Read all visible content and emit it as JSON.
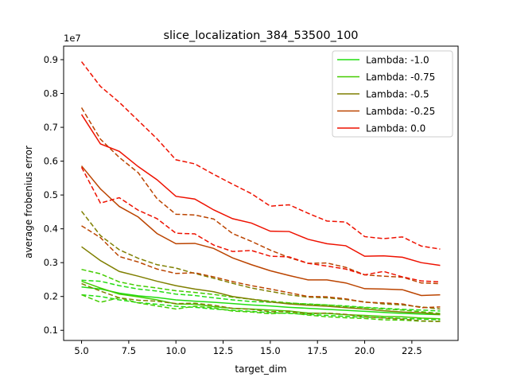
{
  "chart_data": {
    "type": "line",
    "title": "slice_localization_384_53500_100",
    "xlabel": "target_dim",
    "ylabel": "average frobenius error",
    "y_offset_label": "1e7",
    "xlim": [
      4.05,
      24.95
    ],
    "ylim": [
      0.07,
      0.94
    ],
    "x_ticks": [
      5.0,
      7.5,
      10.0,
      12.5,
      15.0,
      17.5,
      20.0,
      22.5
    ],
    "x_tick_labels": [
      "5.0",
      "7.5",
      "10.0",
      "12.5",
      "15.0",
      "17.5",
      "20.0",
      "22.5"
    ],
    "y_ticks": [
      0.1,
      0.2,
      0.3,
      0.4,
      0.5,
      0.6,
      0.7,
      0.8,
      0.9
    ],
    "y_tick_labels": [
      "0.1",
      "0.2",
      "0.3",
      "0.4",
      "0.5",
      "0.6",
      "0.7",
      "0.8",
      "0.9"
    ],
    "legend_position": "top-right",
    "grid": false,
    "x": [
      5,
      6,
      7,
      8,
      9,
      10,
      11,
      12,
      13,
      14,
      15,
      16,
      17,
      18,
      19,
      20,
      21,
      22,
      23,
      24
    ],
    "series": [
      {
        "name": "Lambda: -1.0",
        "color": "#22dd11",
        "solid": [
          0.228,
          0.222,
          0.21,
          0.202,
          0.197,
          0.19,
          0.186,
          0.183,
          0.179,
          0.175,
          0.172,
          0.168,
          0.165,
          0.162,
          0.159,
          0.156,
          0.153,
          0.15,
          0.148,
          0.146
        ],
        "dashed_a": [
          0.248,
          0.245,
          0.232,
          0.222,
          0.216,
          0.207,
          0.203,
          0.196,
          0.19,
          0.185,
          0.183,
          0.18,
          0.178,
          0.175,
          0.172,
          0.168,
          0.165,
          0.162,
          0.16,
          0.157
        ],
        "dashed_b": [
          0.205,
          0.2,
          0.19,
          0.182,
          0.177,
          0.171,
          0.168,
          0.163,
          0.159,
          0.156,
          0.152,
          0.15,
          0.147,
          0.144,
          0.141,
          0.139,
          0.137,
          0.135,
          0.133,
          0.131
        ]
      },
      {
        "name": "Lambda: -0.75",
        "color": "#44cc00",
        "solid": [
          0.245,
          0.225,
          0.207,
          0.199,
          0.19,
          0.178,
          0.177,
          0.17,
          0.165,
          0.163,
          0.16,
          0.157,
          0.151,
          0.15,
          0.146,
          0.144,
          0.141,
          0.14,
          0.136,
          0.134
        ],
        "dashed_a": [
          0.28,
          0.267,
          0.243,
          0.232,
          0.225,
          0.217,
          0.212,
          0.206,
          0.198,
          0.192,
          0.186,
          0.181,
          0.177,
          0.175,
          0.17,
          0.167,
          0.163,
          0.16,
          0.155,
          0.15
        ],
        "dashed_b": [
          0.205,
          0.183,
          0.196,
          0.181,
          0.172,
          0.163,
          0.171,
          0.166,
          0.157,
          0.154,
          0.149,
          0.152,
          0.145,
          0.14,
          0.137,
          0.135,
          0.131,
          0.13,
          0.127,
          0.126
        ]
      },
      {
        "name": "Lambda: -0.5",
        "color": "#7f7f00",
        "solid": [
          0.347,
          0.306,
          0.274,
          0.26,
          0.245,
          0.232,
          0.222,
          0.214,
          0.2,
          0.192,
          0.184,
          0.178,
          0.174,
          0.171,
          0.167,
          0.163,
          0.158,
          0.154,
          0.152,
          0.147
        ],
        "dashed_a": [
          0.452,
          0.38,
          0.338,
          0.313,
          0.294,
          0.284,
          0.268,
          0.254,
          0.239,
          0.225,
          0.215,
          0.205,
          0.198,
          0.196,
          0.191,
          0.184,
          0.178,
          0.175,
          0.169,
          0.163
        ],
        "dashed_b": [
          0.238,
          0.216,
          0.196,
          0.189,
          0.186,
          0.179,
          0.18,
          0.174,
          0.165,
          0.162,
          0.155,
          0.156,
          0.149,
          0.151,
          0.147,
          0.14,
          0.136,
          0.133,
          0.128,
          0.126
        ]
      },
      {
        "name": "Lambda: -0.25",
        "color": "#bb4400",
        "solid": [
          0.586,
          0.518,
          0.466,
          0.435,
          0.386,
          0.356,
          0.357,
          0.342,
          0.314,
          0.294,
          0.276,
          0.262,
          0.249,
          0.249,
          0.24,
          0.223,
          0.222,
          0.22,
          0.203,
          0.205
        ],
        "dashed_a": [
          0.758,
          0.665,
          0.611,
          0.566,
          0.489,
          0.443,
          0.441,
          0.429,
          0.386,
          0.363,
          0.337,
          0.315,
          0.298,
          0.299,
          0.286,
          0.264,
          0.26,
          0.257,
          0.24,
          0.238
        ],
        "dashed_b": [
          0.409,
          0.374,
          0.318,
          0.302,
          0.281,
          0.268,
          0.27,
          0.258,
          0.244,
          0.232,
          0.222,
          0.211,
          0.2,
          0.199,
          0.193,
          0.183,
          0.181,
          0.178,
          0.167,
          0.169
        ]
      },
      {
        "name": "Lambda: 0.0",
        "color": "#ee1100",
        "solid": [
          0.738,
          0.651,
          0.629,
          0.584,
          0.545,
          0.496,
          0.488,
          0.456,
          0.43,
          0.417,
          0.393,
          0.392,
          0.369,
          0.356,
          0.35,
          0.319,
          0.32,
          0.316,
          0.3,
          0.292
        ],
        "dashed_a": [
          0.894,
          0.821,
          0.774,
          0.72,
          0.666,
          0.604,
          0.592,
          0.561,
          0.532,
          0.504,
          0.467,
          0.471,
          0.446,
          0.423,
          0.42,
          0.377,
          0.371,
          0.376,
          0.349,
          0.34
        ],
        "dashed_b": [
          0.582,
          0.476,
          0.492,
          0.455,
          0.43,
          0.387,
          0.385,
          0.352,
          0.333,
          0.336,
          0.319,
          0.317,
          0.298,
          0.29,
          0.281,
          0.264,
          0.274,
          0.258,
          0.246,
          0.243
        ]
      }
    ]
  }
}
